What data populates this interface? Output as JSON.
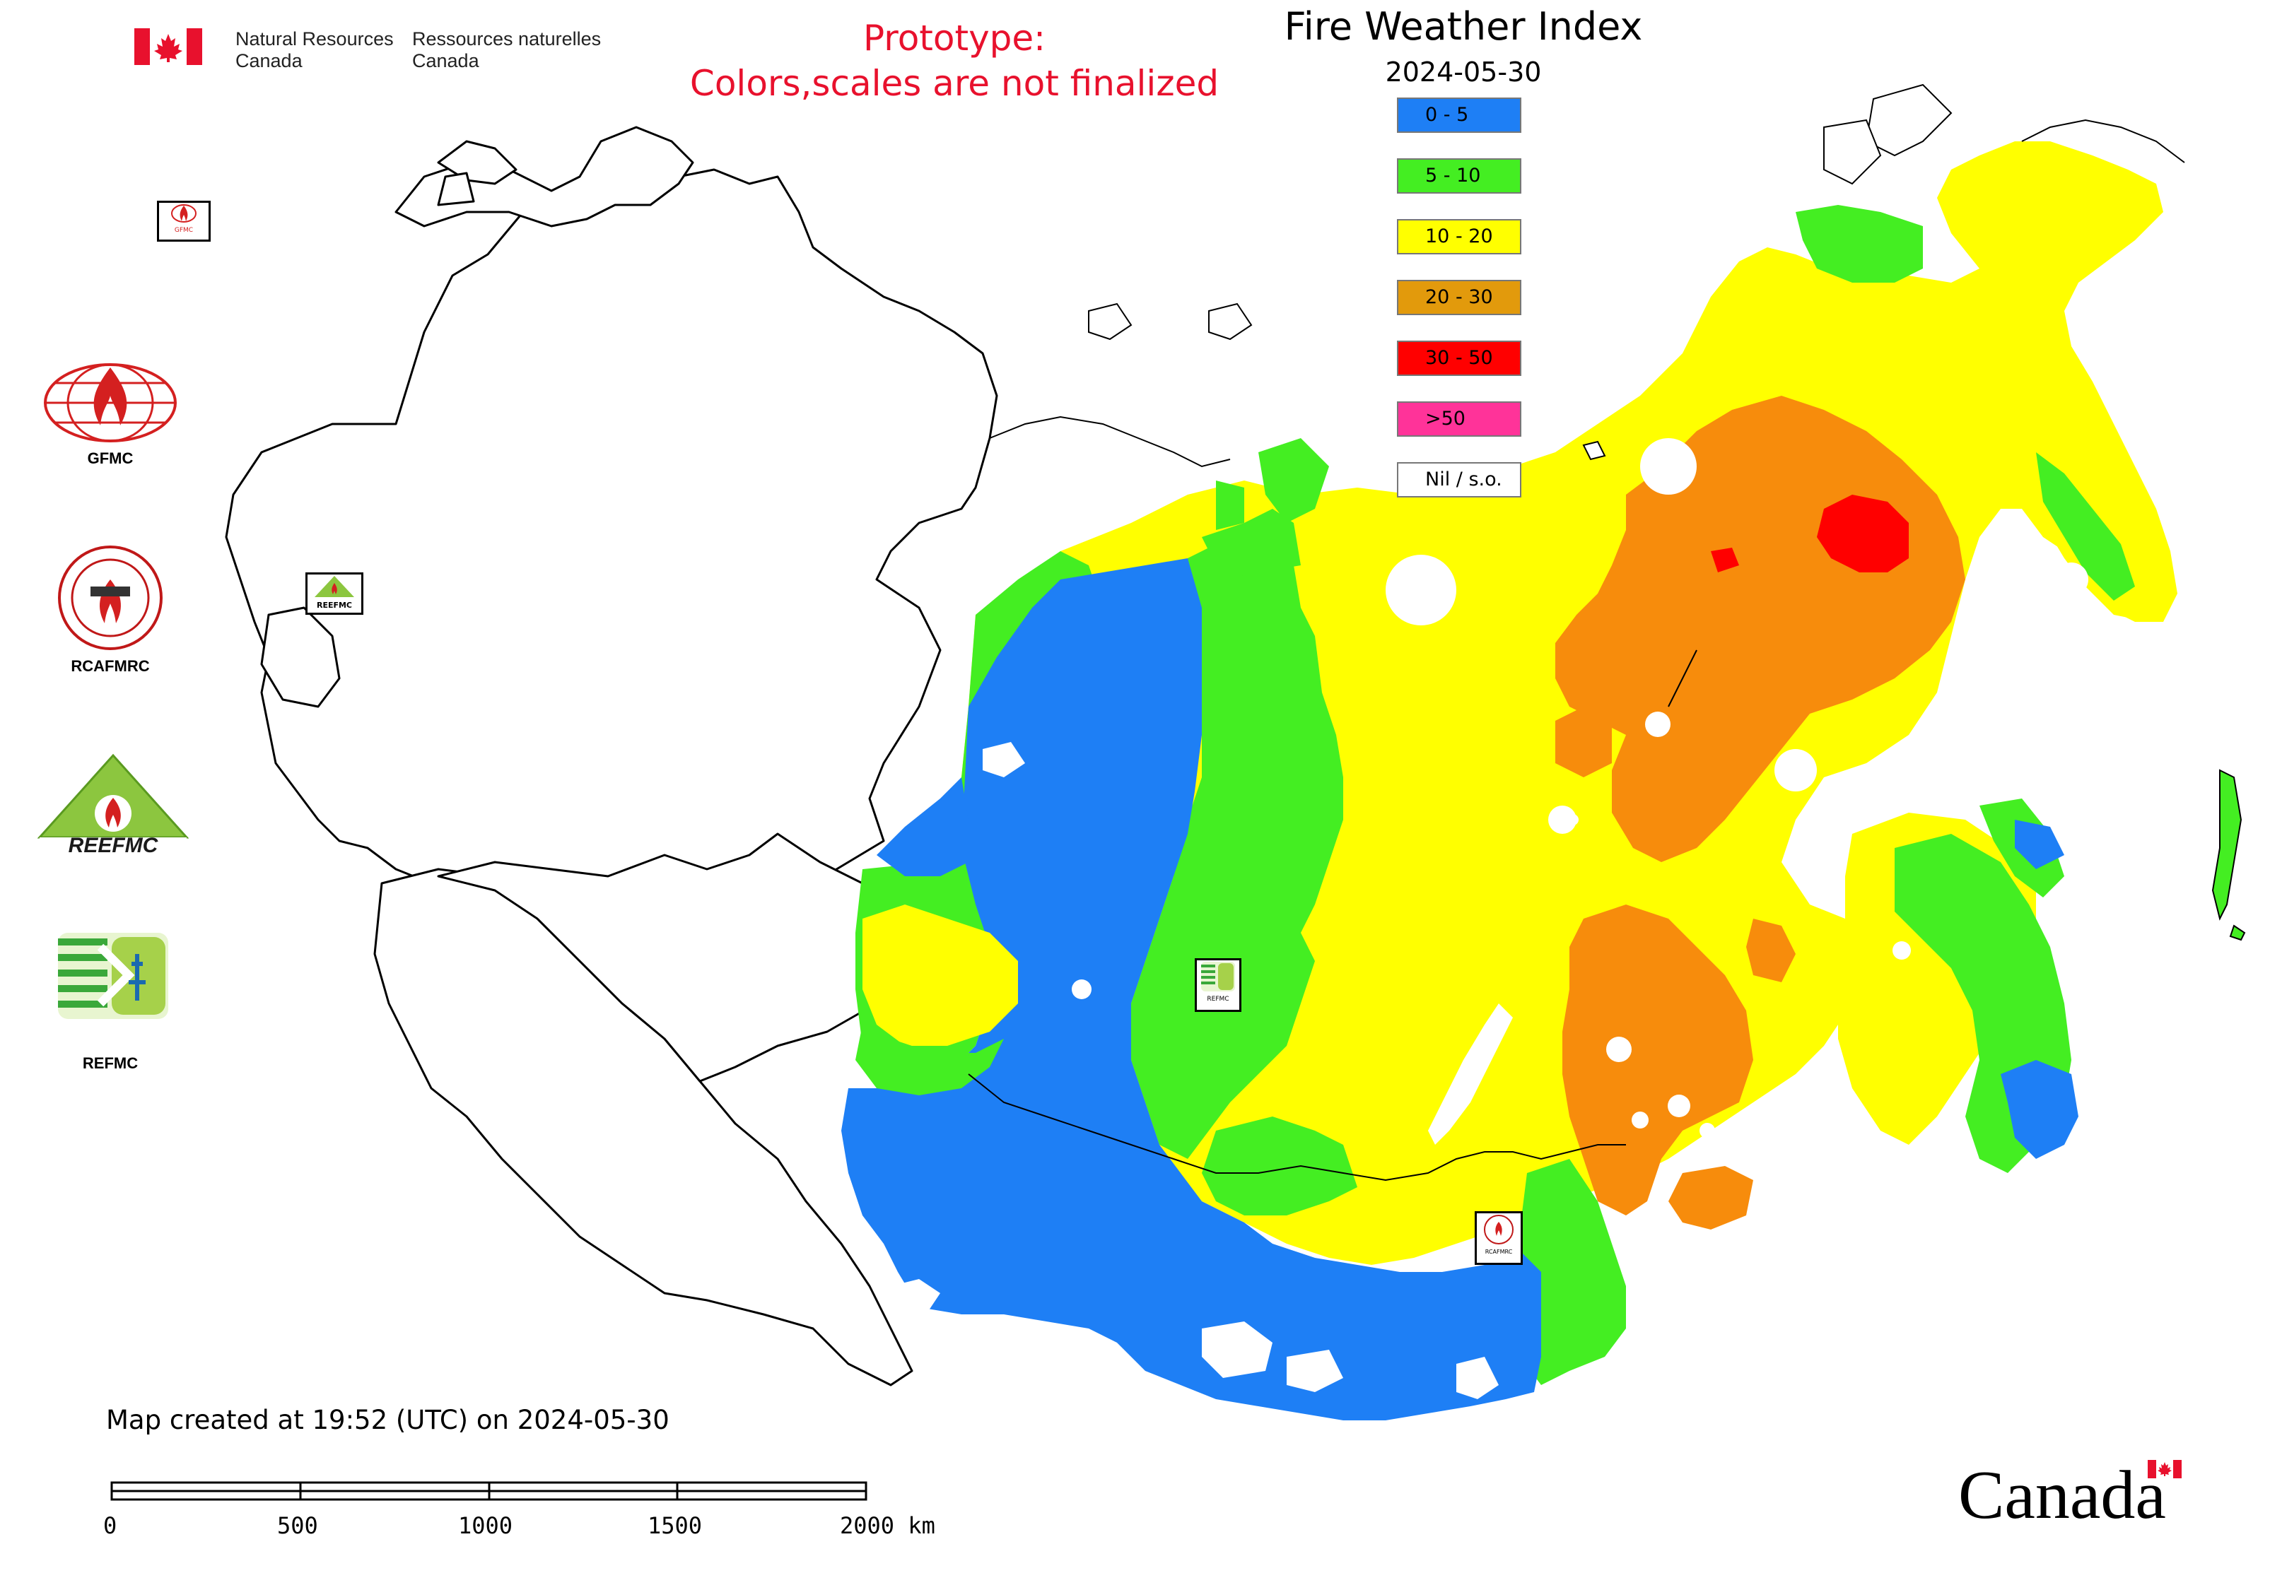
{
  "header": {
    "nrcan_en": "Natural Resources\nCanada",
    "nrcan_fr": "Ressources naturelles\nCanada",
    "prototype_line1": "Prototype:",
    "prototype_line2": "Colors,scales are not finalized"
  },
  "map": {
    "title": "Fire Weather Index",
    "date": "2024-05-30",
    "legend": [
      {
        "label": "0 - 5",
        "color": "#1e7ff5"
      },
      {
        "label": "5 - 10",
        "color": "#44ee22"
      },
      {
        "label": "10 - 20",
        "color": "#ffff00"
      },
      {
        "label": "20 - 30",
        "color": "#e29a0c"
      },
      {
        "label": "30 - 50",
        "color": "#ff0000"
      },
      {
        "label": ">50",
        "color": "#ff3399"
      },
      {
        "label": "Nil / s.o.",
        "color": "#ffffff"
      }
    ],
    "fwi_colors": {
      "very_low": "#1e7ff5",
      "low": "#44ee22",
      "moderate": "#ffff00",
      "high": "#f78c0c",
      "very_high": "#ff0000"
    },
    "station_logos": [
      {
        "name": "GFMC",
        "small_label": "GFMC"
      },
      {
        "name": "REEFMC",
        "small_label": "REEFMC"
      },
      {
        "name": "REFMC",
        "small_label": "REFMC"
      },
      {
        "name": "RCAFMRC",
        "small_label": "RCAFMRC"
      }
    ]
  },
  "sidebar_logos": [
    {
      "label": "GFMC",
      "icon": "gfmc-globe-flame-icon"
    },
    {
      "label": "RCAFMRC",
      "icon": "rcafmrc-seal-icon"
    },
    {
      "label": "REEFMC",
      "icon": "reefmc-triangle-icon"
    },
    {
      "label": "REFMC",
      "icon": "refmc-sigma-icon"
    }
  ],
  "footer": {
    "created": "Map created at 19:52 (UTC) on 2024-05-30",
    "scale_ticks": [
      "0",
      "500",
      "1000",
      "1500",
      "2000 km"
    ],
    "wordmark": "Canad"
  }
}
